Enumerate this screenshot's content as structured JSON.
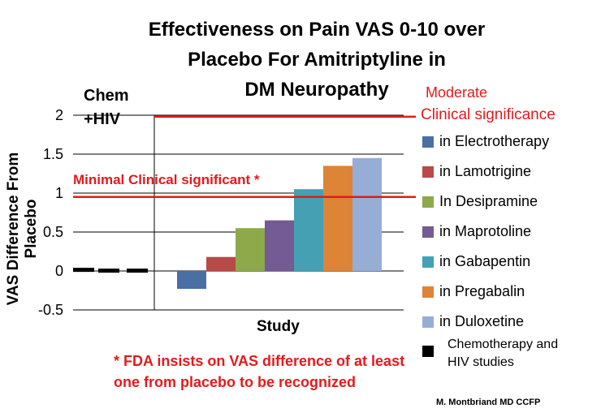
{
  "chart_data": {
    "type": "bar",
    "title": "Effectiveness on Pain VAS 0-10 over\nPlacebo For Amitriptyline in\nDM Neuropathy",
    "xlabel": "Study",
    "ylabel": "VAS Difference From Placebo",
    "ylim": [
      -0.5,
      2
    ],
    "yticks": [
      "-0.5",
      "0",
      "0.5",
      "1",
      "1.5",
      "2"
    ],
    "grid": true,
    "legend_position": "right",
    "chemo_group_label": "Chem\n+HIV",
    "chemo_bars": [
      0.03,
      0.02,
      0.02
    ],
    "series": [
      {
        "name": "in Electrotherapy",
        "value": -0.23,
        "color": "#4a6fa5"
      },
      {
        "name": "in Lamotrigine",
        "value": 0.18,
        "color": "#b84a47"
      },
      {
        "name": "In Desipramine",
        "value": 0.55,
        "color": "#8da94a"
      },
      {
        "name": "in Maprotoline",
        "value": 0.65,
        "color": "#745b93"
      },
      {
        "name": "in Gabapentin",
        "value": 1.05,
        "color": "#45a0b4"
      },
      {
        "name": "in Pregabalin",
        "value": 1.35,
        "color": "#dd8437"
      },
      {
        "name": "in Duloxetine",
        "value": 1.45,
        "color": "#96aed6"
      }
    ],
    "chemo_legend": "Chemotherapy and\nHIV studies",
    "reference_lines": [
      {
        "value": 1.98,
        "label_line1": "Moderate",
        "label_line2": "Clinical significance",
        "color": "#e41a1c"
      },
      {
        "value": 0.95,
        "label": "Minimal Clinical  significant  *",
        "color": "#e41a1c"
      }
    ]
  },
  "footnote": "* FDA insists on VAS difference of at least one from placebo to be recognized",
  "credit": "M. Montbriand MD CCFP"
}
